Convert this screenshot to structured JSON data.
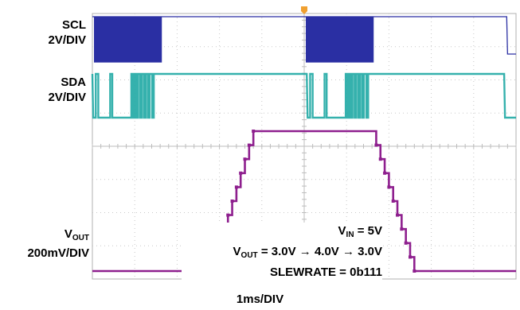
{
  "chart_data": {
    "type": "line",
    "title": "",
    "xlabel": "1ms/DIV",
    "time_per_div_ms": 1,
    "divisions": 10,
    "grid": true,
    "channels": [
      {
        "name_main": "SCL",
        "name_sub": "",
        "scale": "2V/DIV",
        "color": "#2a2fa3"
      },
      {
        "name_main": "SDA",
        "name_sub": "",
        "scale": "2V/DIV",
        "color": "#1fa9a4"
      },
      {
        "name_main": "V",
        "name_sub": "OUT",
        "scale": "200mV/DIV",
        "color": "#8e1f8e"
      }
    ],
    "trigger_marker_color": "#f0a030",
    "vout_steps_up": [
      [
        1.68,
        3.0
      ],
      [
        2.88,
        3.0
      ],
      [
        2.9,
        3.1
      ],
      [
        3.0,
        3.2
      ],
      [
        3.1,
        3.3
      ],
      [
        3.2,
        3.4
      ],
      [
        3.3,
        3.5
      ],
      [
        3.4,
        3.6
      ],
      [
        3.5,
        3.7
      ],
      [
        3.6,
        3.8
      ],
      [
        3.7,
        3.9
      ],
      [
        3.8,
        4.0
      ],
      [
        6.6,
        4.0
      ]
    ],
    "vout_steps_down": [
      [
        6.6,
        4.0
      ],
      [
        6.7,
        3.9
      ],
      [
        6.8,
        3.8
      ],
      [
        6.9,
        3.7
      ],
      [
        7.0,
        3.6
      ],
      [
        7.1,
        3.5
      ],
      [
        7.2,
        3.4
      ],
      [
        7.3,
        3.3
      ],
      [
        7.4,
        3.2
      ],
      [
        7.5,
        3.1
      ],
      [
        7.6,
        3.0
      ],
      [
        10.0,
        3.0
      ]
    ],
    "vout_units": "V"
  },
  "annotation": {
    "vin_main": "V",
    "vin_sub": "IN",
    "vin_rest": " = 5V",
    "vout_main": "V",
    "vout_sub": "OUT",
    "vout_rest": " = 3.0V → 4.0V → 3.0V",
    "slewrate": "SLEWRATE = 0b111"
  }
}
